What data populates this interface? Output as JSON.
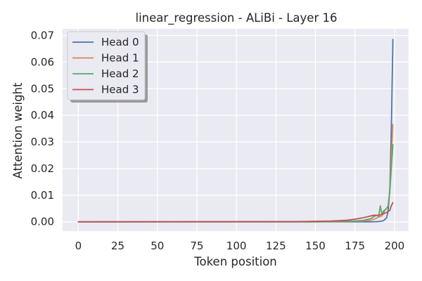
{
  "chart_data": {
    "type": "line",
    "title": "linear_regression - ALiBi - Layer 16",
    "xlabel": "Token position",
    "ylabel": "Attention weight",
    "xlim": [
      -9.95,
      208.95
    ],
    "ylim": [
      -0.0035,
      0.0725
    ],
    "x_ticks": [
      0,
      25,
      50,
      75,
      100,
      125,
      150,
      175,
      200
    ],
    "y_ticks": [
      0.0,
      0.01,
      0.02,
      0.03,
      0.04,
      0.05,
      0.06,
      0.07
    ],
    "y_tick_labels": [
      "0.00",
      "0.01",
      "0.02",
      "0.03",
      "0.04",
      "0.05",
      "0.06",
      "0.07"
    ],
    "grid": true,
    "legend_position": "top-left",
    "series": [
      {
        "name": "Head 0",
        "color": "#4c72b0",
        "points": [
          [
            0,
            0.0
          ],
          [
            150,
            0.0
          ],
          [
            185,
            0.0
          ],
          [
            190,
            0.0001
          ],
          [
            193,
            0.0004
          ],
          [
            195,
            0.0015
          ],
          [
            196,
            0.004
          ],
          [
            197,
            0.012
          ],
          [
            198,
            0.035
          ],
          [
            199,
            0.0685
          ]
        ]
      },
      {
        "name": "Head 1",
        "color": "#dd8452",
        "points": [
          [
            0,
            0.0
          ],
          [
            150,
            0.0
          ],
          [
            170,
            0.0001
          ],
          [
            180,
            0.0003
          ],
          [
            185,
            0.0006
          ],
          [
            188,
            0.0012
          ],
          [
            190,
            0.0018
          ],
          [
            192,
            0.0022
          ],
          [
            193,
            0.003
          ],
          [
            194,
            0.0045
          ],
          [
            195,
            0.005
          ],
          [
            196,
            0.006
          ],
          [
            197,
            0.012
          ],
          [
            198,
            0.025
          ],
          [
            199,
            0.0365
          ]
        ]
      },
      {
        "name": "Head 2",
        "color": "#55a868",
        "points": [
          [
            0,
            0.0
          ],
          [
            150,
            0.0
          ],
          [
            170,
            0.0002
          ],
          [
            180,
            0.0005
          ],
          [
            185,
            0.0012
          ],
          [
            187,
            0.002
          ],
          [
            189,
            0.0025
          ],
          [
            190,
            0.002
          ],
          [
            191,
            0.006
          ],
          [
            192,
            0.003
          ],
          [
            193,
            0.004
          ],
          [
            194,
            0.0045
          ],
          [
            195,
            0.005
          ],
          [
            196,
            0.006
          ],
          [
            197,
            0.011
          ],
          [
            198,
            0.02
          ],
          [
            199,
            0.029
          ]
        ]
      },
      {
        "name": "Head 3",
        "color": "#c44e52",
        "points": [
          [
            0,
            0.0
          ],
          [
            140,
            0.0001
          ],
          [
            160,
            0.0003
          ],
          [
            170,
            0.0006
          ],
          [
            175,
            0.001
          ],
          [
            180,
            0.0015
          ],
          [
            185,
            0.0022
          ],
          [
            187,
            0.0025
          ],
          [
            189,
            0.0024
          ],
          [
            191,
            0.0026
          ],
          [
            193,
            0.003
          ],
          [
            195,
            0.0035
          ],
          [
            196,
            0.004
          ],
          [
            197,
            0.0042
          ],
          [
            198,
            0.006
          ],
          [
            199,
            0.0072
          ]
        ]
      }
    ]
  },
  "colors": {
    "plot_background": "#eaeaf2",
    "grid": "#ffffff",
    "text": "#262626"
  }
}
